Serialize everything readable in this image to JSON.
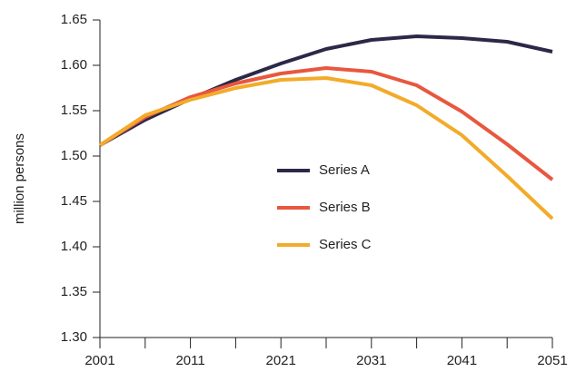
{
  "chart_data": {
    "type": "line",
    "y_label": "million persons",
    "x": [
      2001,
      2006,
      2011,
      2016,
      2021,
      2026,
      2031,
      2036,
      2041,
      2046,
      2051
    ],
    "series": [
      {
        "name": "Series A",
        "color": "#2b2947",
        "values": [
          1.512,
          1.54,
          1.563,
          1.584,
          1.602,
          1.618,
          1.628,
          1.632,
          1.63,
          1.626,
          1.615
        ]
      },
      {
        "name": "Series B",
        "color": "#e8573e",
        "values": [
          1.512,
          1.543,
          1.565,
          1.58,
          1.591,
          1.597,
          1.593,
          1.578,
          1.549,
          1.513,
          1.474
        ]
      },
      {
        "name": "Series C",
        "color": "#f2ab2a",
        "values": [
          1.512,
          1.545,
          1.562,
          1.575,
          1.584,
          1.586,
          1.578,
          1.556,
          1.523,
          1.478,
          1.431
        ]
      }
    ],
    "xlim": [
      2001,
      2051
    ],
    "xticks": [
      2001,
      2011,
      2021,
      2031,
      2041,
      2051
    ],
    "x_minor_ticks": [
      2006,
      2016,
      2026,
      2036,
      2046
    ],
    "ylim": [
      1.3,
      1.65
    ],
    "yticks": [
      {
        "value": 1.3,
        "label": "1.30"
      },
      1.35,
      {
        "value": 1.4,
        "label": "1.40"
      },
      1.45,
      {
        "value": 1.5,
        "label": "1.50"
      },
      1.55,
      {
        "value": 1.6,
        "label": "1.60"
      },
      1.65
    ],
    "grid": false,
    "legend": "center"
  }
}
